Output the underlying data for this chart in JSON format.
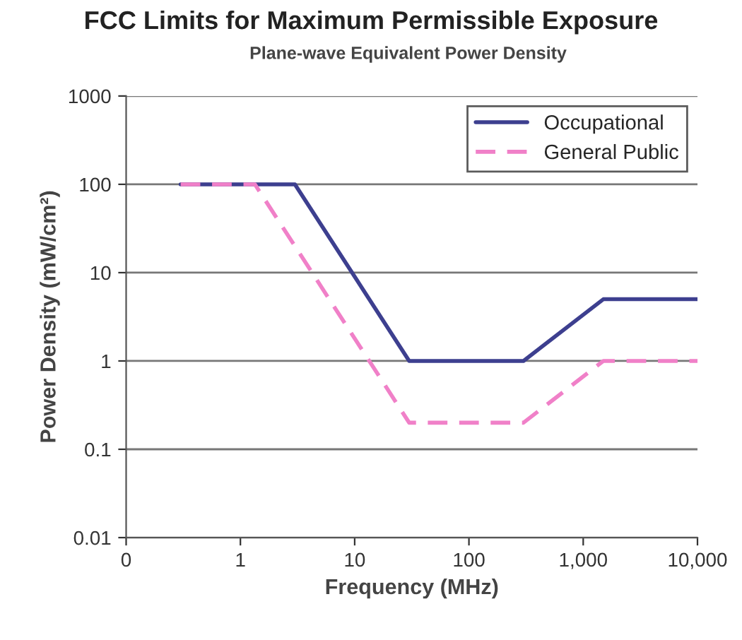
{
  "chart_data": {
    "type": "line",
    "title": "FCC Limits for Maximum Permissible Exposure",
    "subtitle": "Plane-wave Equivalent Power Density",
    "xlabel": "Frequency (MHz)",
    "ylabel": "Power Density (mW/cm²)",
    "log": "xy",
    "xlim": [
      0.1,
      10000
    ],
    "xticks": [
      {
        "value": 0.1,
        "label": "0"
      },
      1,
      10,
      100,
      {
        "value": 1000,
        "label": "1,000"
      },
      {
        "value": 10000,
        "label": "10,000"
      }
    ],
    "ylim": [
      0.01,
      1000
    ],
    "yticks": [
      0.01,
      0.1,
      1,
      10,
      100,
      1000
    ],
    "grid": "y",
    "legend": "top right",
    "marker": "none",
    "series": [
      {
        "name": "Occupational",
        "color": "#3d3f8f",
        "line_style": "solid",
        "x": [
          0.3,
          3,
          30,
          300,
          1500,
          10000
        ],
        "values": [
          100,
          100,
          1,
          1,
          5,
          5
        ]
      },
      {
        "name": "General Public",
        "color": "#f080c8",
        "line_style": "dashed",
        "x": [
          0.3,
          1.34,
          30,
          300,
          1500,
          10000
        ],
        "values": [
          100,
          100,
          0.2,
          0.2,
          1,
          1
        ]
      }
    ]
  }
}
